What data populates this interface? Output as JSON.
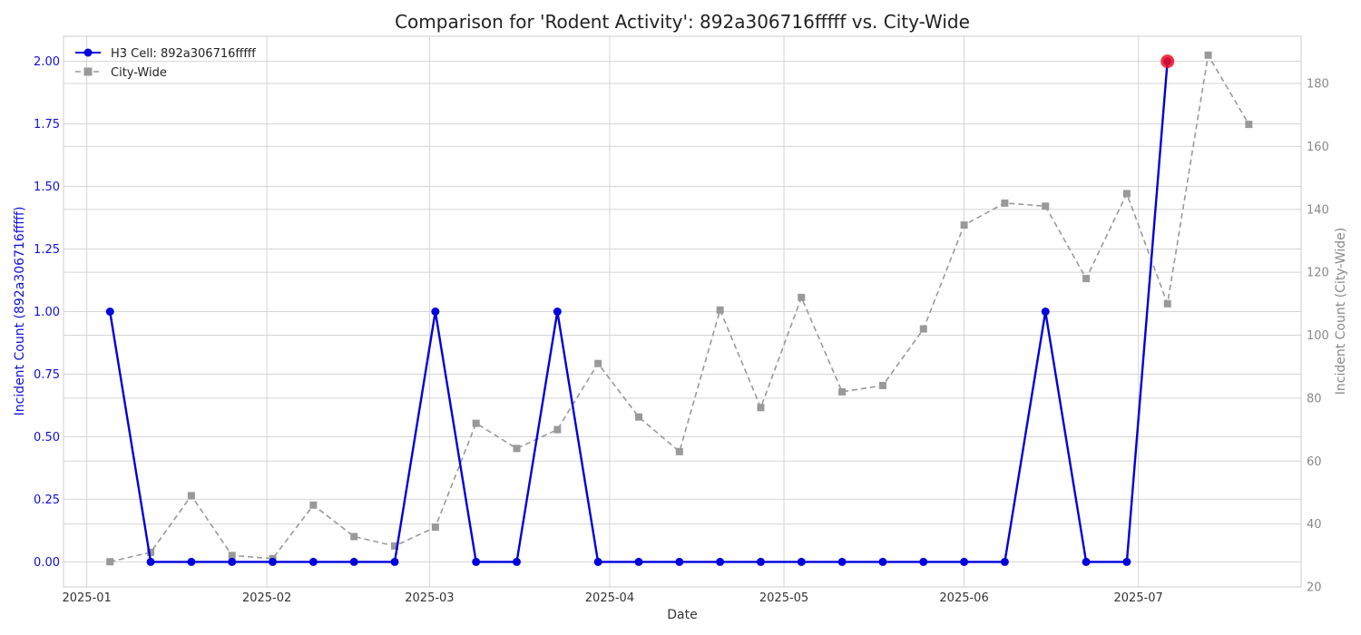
{
  "chart_data": {
    "type": "line",
    "title": "Comparison for 'Rodent Activity': 892a306716fffff vs. City-Wide",
    "xlabel": "Date",
    "ylabel_left": "Incident Count (892a306716fffff)",
    "ylabel_right": "Incident Count (City-Wide)",
    "xlim": [
      "2024-12-28",
      "2025-07-29"
    ],
    "ylim_left": [
      -0.1,
      2.1
    ],
    "ylim_right": [
      20,
      195
    ],
    "x_ticks": [
      "2025-01",
      "2025-02",
      "2025-03",
      "2025-04",
      "2025-05",
      "2025-06",
      "2025-07"
    ],
    "y_ticks_left": [
      "0.00",
      "0.25",
      "0.50",
      "0.75",
      "1.00",
      "1.25",
      "1.50",
      "1.75",
      "2.00"
    ],
    "y_ticks_right": [
      "20",
      "40",
      "60",
      "80",
      "100",
      "120",
      "140",
      "160",
      "180"
    ],
    "grid": true,
    "legend_position": "top-left",
    "series": [
      {
        "name": "H3 Cell: 892a306716fffff",
        "axis": "left",
        "color": "#0000dd",
        "style": "solid",
        "marker": "circle",
        "x": [
          "2025-01-05",
          "2025-01-12",
          "2025-01-19",
          "2025-01-26",
          "2025-02-02",
          "2025-02-09",
          "2025-02-16",
          "2025-02-23",
          "2025-03-02",
          "2025-03-09",
          "2025-03-16",
          "2025-03-23",
          "2025-03-30",
          "2025-04-06",
          "2025-04-13",
          "2025-04-20",
          "2025-04-27",
          "2025-05-04",
          "2025-05-11",
          "2025-05-18",
          "2025-05-25",
          "2025-06-01",
          "2025-06-08",
          "2025-06-15",
          "2025-06-22",
          "2025-06-29",
          "2025-07-06"
        ],
        "values": [
          1,
          0,
          0,
          0,
          0,
          0,
          0,
          0,
          1,
          0,
          0,
          1,
          0,
          0,
          0,
          0,
          0,
          0,
          0,
          0,
          0,
          0,
          0,
          1,
          0,
          0,
          2
        ]
      },
      {
        "name": "City-Wide",
        "axis": "right",
        "color": "#999999",
        "style": "dashed",
        "marker": "square",
        "x": [
          "2025-01-05",
          "2025-01-12",
          "2025-01-19",
          "2025-01-26",
          "2025-02-02",
          "2025-02-09",
          "2025-02-16",
          "2025-02-23",
          "2025-03-02",
          "2025-03-09",
          "2025-03-16",
          "2025-03-23",
          "2025-03-30",
          "2025-04-06",
          "2025-04-13",
          "2025-04-20",
          "2025-04-27",
          "2025-05-04",
          "2025-05-11",
          "2025-05-18",
          "2025-05-25",
          "2025-06-01",
          "2025-06-08",
          "2025-06-15",
          "2025-06-22",
          "2025-06-29",
          "2025-07-06",
          "2025-07-13",
          "2025-07-20"
        ],
        "values": [
          28,
          31,
          49,
          30,
          29,
          46,
          36,
          33,
          39,
          72,
          64,
          70,
          91,
          74,
          63,
          108,
          77,
          112,
          82,
          84,
          102,
          135,
          142,
          141,
          118,
          145,
          110,
          189,
          167
        ]
      }
    ],
    "highlight": {
      "x": "2025-07-06",
      "value": 2,
      "axis": "left",
      "color": "#ee1122"
    }
  }
}
